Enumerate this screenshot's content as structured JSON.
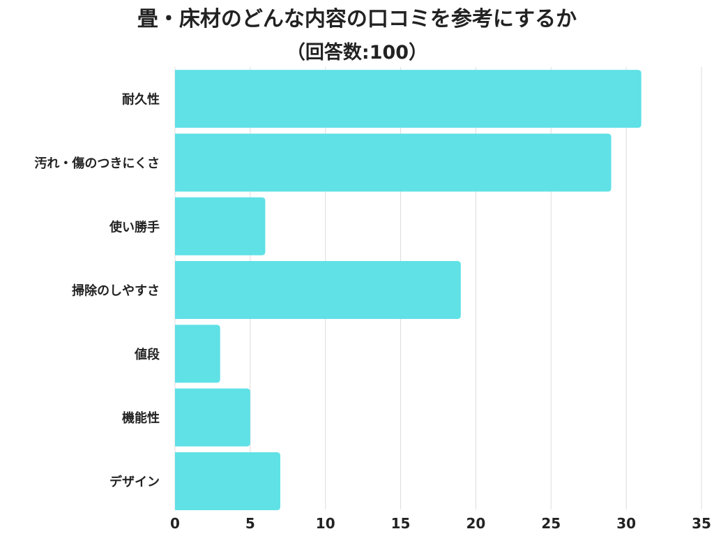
{
  "title": "畳・床材のどんな内容の口コミを参考にするか",
  "subtitle": "（回答数:100）",
  "colors": {
    "bar": "#5fe1e6",
    "grid": "#dcdcdc",
    "text": "#222222"
  },
  "chart_data": {
    "type": "bar",
    "orientation": "horizontal",
    "title": "畳・床材のどんな内容の口コミを参考にするか",
    "subtitle": "（回答数:100）",
    "categories": [
      "耐久性",
      "汚れ・傷のつきにくさ",
      "使い勝手",
      "掃除のしやすさ",
      "値段",
      "機能性",
      "デザイン"
    ],
    "values": [
      31,
      29,
      6,
      19,
      3,
      5,
      7
    ],
    "xlim": [
      0,
      35
    ],
    "xticks": [
      0,
      5,
      10,
      15,
      20,
      25,
      30,
      35
    ],
    "xlabel": "",
    "ylabel": "",
    "grid": true,
    "legend": "none"
  }
}
